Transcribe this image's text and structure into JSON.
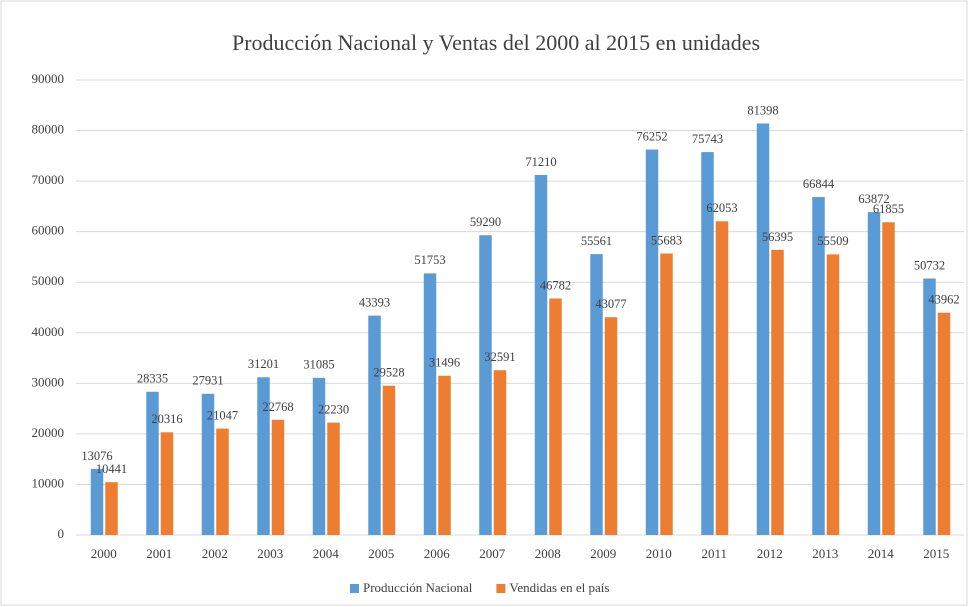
{
  "chart_data": {
    "type": "bar",
    "title": "Producción  Nacional  y Ventas del 2000 al 2015  en unidades",
    "categories": [
      "2000",
      "2001",
      "2002",
      "2003",
      "2004",
      "2005",
      "2006",
      "2007",
      "2008",
      "2009",
      "2010",
      "2011",
      "2012",
      "2013",
      "2014",
      "2015"
    ],
    "series": [
      {
        "name": "Producción Nacional",
        "color": "#5b9bd5",
        "values": [
          13076,
          28335,
          27931,
          31201,
          31085,
          43393,
          51753,
          59290,
          71210,
          55561,
          76252,
          75743,
          81398,
          66844,
          63872,
          50732
        ]
      },
      {
        "name": "Vendidas en el país",
        "color": "#ed7d31",
        "values": [
          10441,
          20316,
          21047,
          22768,
          22230,
          29528,
          31496,
          32591,
          46782,
          43077,
          55683,
          62053,
          56395,
          55509,
          61855,
          43962
        ]
      }
    ],
    "ylim": [
      0,
      90000
    ],
    "yticks": [
      0,
      10000,
      20000,
      30000,
      40000,
      50000,
      60000,
      70000,
      80000,
      90000
    ],
    "grid": true,
    "legend": "bottom"
  }
}
